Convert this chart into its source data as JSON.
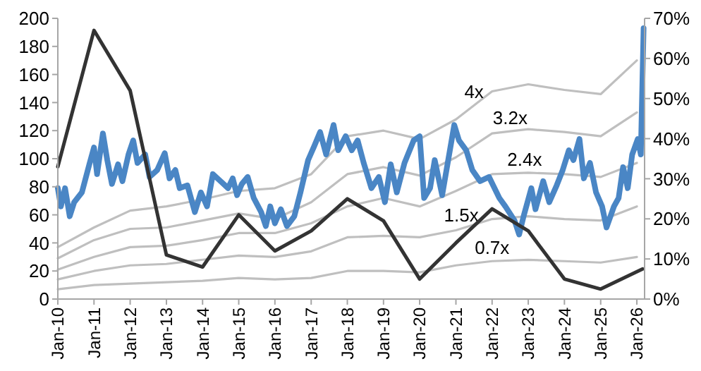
{
  "chart_data": {
    "type": "line",
    "xlim": [
      "2010-01-01",
      "2026-03-20"
    ],
    "xticks": [
      {
        "value": "2010-01",
        "label": "Jan-10"
      },
      {
        "value": "2011-01",
        "label": "Jan-11"
      },
      {
        "value": "2012-01",
        "label": "Jan-12"
      },
      {
        "value": "2013-01",
        "label": "Jan-13"
      },
      {
        "value": "2014-01",
        "label": "Jan-14"
      },
      {
        "value": "2015-01",
        "label": "Jan-15"
      },
      {
        "value": "2016-01",
        "label": "Jan-16"
      },
      {
        "value": "2017-01",
        "label": "Jan-17"
      },
      {
        "value": "2018-01",
        "label": "Jan-18"
      },
      {
        "value": "2019-01",
        "label": "Jan-19"
      },
      {
        "value": "2020-01",
        "label": "Jan-20"
      },
      {
        "value": "2021-01",
        "label": "Jan-21"
      },
      {
        "value": "2022-01",
        "label": "Jan-22"
      },
      {
        "value": "2023-01",
        "label": "Jan-23"
      },
      {
        "value": "2024-01",
        "label": "Jan-24"
      },
      {
        "value": "2025-01",
        "label": "Jan-25"
      },
      {
        "value": "2026-01",
        "label": "Jan-26"
      }
    ],
    "ylim": [
      0,
      200
    ],
    "yticks": [
      0,
      20,
      40,
      60,
      80,
      100,
      120,
      140,
      160,
      180,
      200
    ],
    "y2lim": [
      0,
      70
    ],
    "y2ticks": [
      {
        "value": 0,
        "label": "0%"
      },
      {
        "value": 10,
        "label": "10%"
      },
      {
        "value": 20,
        "label": "20%"
      },
      {
        "value": 30,
        "label": "30%"
      },
      {
        "value": 40,
        "label": "40%"
      },
      {
        "value": 50,
        "label": "50%"
      },
      {
        "value": 60,
        "label": "60%"
      },
      {
        "value": 70,
        "label": "70%"
      }
    ],
    "grid": false,
    "series": [
      {
        "name": "4x",
        "color": "#bfbfbf",
        "x": [
          "2010-01",
          "2011-01",
          "2012-01",
          "2013-01",
          "2014-01",
          "2015-01",
          "2016-01",
          "2017-01",
          "2018-01",
          "2019-01",
          "2020-01",
          "2021-01",
          "2022-01",
          "2023-01",
          "2024-01",
          "2025-01",
          "2026-01"
        ],
        "values": [
          37,
          51,
          63,
          66,
          71,
          77,
          79,
          89,
          116,
          120,
          114,
          128,
          148,
          153,
          149,
          146,
          170
        ]
      },
      {
        "name": "3.2x",
        "color": "#bfbfbf",
        "x": [
          "2010-01",
          "2011-01",
          "2012-01",
          "2013-01",
          "2014-01",
          "2015-01",
          "2016-01",
          "2017-01",
          "2018-01",
          "2019-01",
          "2020-01",
          "2021-01",
          "2022-01",
          "2023-01",
          "2024-01",
          "2025-01",
          "2026-01"
        ],
        "values": [
          29,
          42,
          50,
          51,
          56,
          61,
          57,
          69,
          89,
          94,
          88,
          101,
          118,
          121,
          119,
          116,
          133
        ]
      },
      {
        "name": "2.4x",
        "color": "#bfbfbf",
        "x": [
          "2010-01",
          "2011-01",
          "2012-01",
          "2013-01",
          "2014-01",
          "2015-01",
          "2016-01",
          "2017-01",
          "2018-01",
          "2019-01",
          "2020-01",
          "2021-01",
          "2022-01",
          "2023-01",
          "2024-01",
          "2025-01",
          "2026-01"
        ],
        "values": [
          21,
          30,
          37,
          38,
          42,
          47,
          47,
          54,
          66,
          72,
          66,
          77,
          89,
          90,
          89,
          87,
          97
        ]
      },
      {
        "name": "1.5x",
        "color": "#bfbfbf",
        "x": [
          "2010-01",
          "2011-01",
          "2012-01",
          "2013-01",
          "2014-01",
          "2015-01",
          "2016-01",
          "2017-01",
          "2018-01",
          "2019-01",
          "2020-01",
          "2021-01",
          "2022-01",
          "2023-01",
          "2024-01",
          "2025-01",
          "2026-01"
        ],
        "values": [
          14,
          20,
          24,
          25,
          28,
          31,
          30,
          34,
          44,
          45,
          44,
          49,
          57,
          59,
          57,
          56,
          66
        ]
      },
      {
        "name": "0.7x",
        "color": "#bfbfbf",
        "x": [
          "2010-01",
          "2011-01",
          "2012-01",
          "2013-01",
          "2014-01",
          "2015-01",
          "2016-01",
          "2017-01",
          "2018-01",
          "2019-01",
          "2020-01",
          "2021-01",
          "2022-01",
          "2023-01",
          "2024-01",
          "2025-01",
          "2026-01"
        ],
        "values": [
          7,
          10,
          11,
          12,
          13,
          15,
          14,
          15,
          20,
          20,
          19,
          24,
          27,
          28,
          27,
          26,
          30
        ]
      },
      {
        "color": "#4a86c5",
        "x": [
          "2010-01-01",
          "2010-02-01",
          "2010-03-15",
          "2010-05-01",
          "2010-06-15",
          "2010-09-01",
          "2010-11-15",
          "2011-01-01",
          "2011-02-01",
          "2011-04-01",
          "2011-05-15",
          "2011-07-01",
          "2011-09-01",
          "2011-10-15",
          "2011-12-15",
          "2012-02-01",
          "2012-03-15",
          "2012-06-01",
          "2012-07-15",
          "2012-10-01",
          "2012-12-15",
          "2013-02-01",
          "2013-04-01",
          "2013-05-15",
          "2013-08-01",
          "2013-10-15",
          "2013-12-15",
          "2014-02-15",
          "2014-04-15",
          "2014-07-01",
          "2014-09-15",
          "2014-11-01",
          "2014-12-15",
          "2015-02-01",
          "2015-04-01",
          "2015-06-01",
          "2015-08-15",
          "2015-10-01",
          "2015-11-15",
          "2016-01-01",
          "2016-03-01",
          "2016-05-01",
          "2016-07-15",
          "2016-09-15",
          "2016-12-01",
          "2017-02-01",
          "2017-04-01",
          "2017-06-01",
          "2017-08-15",
          "2017-10-01",
          "2017-12-15",
          "2018-02-15",
          "2018-04-15",
          "2018-06-15",
          "2018-09-01",
          "2018-11-15",
          "2019-01-15",
          "2019-03-15",
          "2019-05-15",
          "2019-08-01",
          "2019-11-01",
          "2020-01-01",
          "2020-02-15",
          "2020-04-15",
          "2020-06-01",
          "2020-08-15",
          "2020-10-15",
          "2020-12-15",
          "2021-02-01",
          "2021-04-15",
          "2021-06-15",
          "2021-09-01",
          "2021-12-01",
          "2022-03-15",
          "2022-05-15",
          "2022-08-15",
          "2022-10-01",
          "2022-11-15",
          "2023-02-01",
          "2023-03-15",
          "2023-06-01",
          "2023-08-01",
          "2023-10-15",
          "2023-12-15",
          "2024-02-15",
          "2024-04-01",
          "2024-06-01",
          "2024-07-15",
          "2024-09-15",
          "2024-11-15",
          "2025-01-15",
          "2025-03-01",
          "2025-05-15",
          "2025-07-01",
          "2025-08-15",
          "2025-10-01",
          "2025-11-15",
          "2026-01-10",
          "2026-02-10",
          "2026-03-10"
        ],
        "values": [
          79,
          66,
          79,
          59,
          69,
          76,
          96,
          108,
          89,
          118,
          99,
          82,
          96,
          84,
          103,
          113,
          97,
          103,
          87,
          92,
          104,
          86,
          92,
          79,
          81,
          62,
          76,
          66,
          89,
          84,
          79,
          86,
          74,
          82,
          87,
          72,
          62,
          52,
          66,
          54,
          64,
          52,
          59,
          76,
          99,
          109,
          119,
          103,
          124,
          106,
          116,
          106,
          113,
          97,
          79,
          87,
          69,
          96,
          76,
          97,
          113,
          116,
          72,
          79,
          99,
          74,
          99,
          124,
          113,
          106,
          92,
          84,
          87,
          72,
          66,
          56,
          46,
          59,
          79,
          64,
          84,
          69,
          81,
          92,
          106,
          99,
          114,
          86,
          97,
          76,
          66,
          51,
          66,
          72,
          94,
          79,
          103,
          114,
          103,
          193
        ]
      },
      {
        "color": "#333333",
        "axis": "y2",
        "x": [
          "2010-01",
          "2011-01",
          "2012-01",
          "2013-01",
          "2014-01",
          "2015-01",
          "2016-01",
          "2017-01",
          "2018-01",
          "2019-01",
          "2020-01",
          "2021-01",
          "2022-01",
          "2023-01",
          "2024-01",
          "2025-01",
          "2026-03"
        ],
        "values": [
          33,
          67,
          52,
          11,
          8,
          21,
          12,
          17,
          25,
          19.5,
          5,
          14,
          22.5,
          17,
          5,
          2.5,
          7.5
        ]
      }
    ],
    "legend": false
  }
}
